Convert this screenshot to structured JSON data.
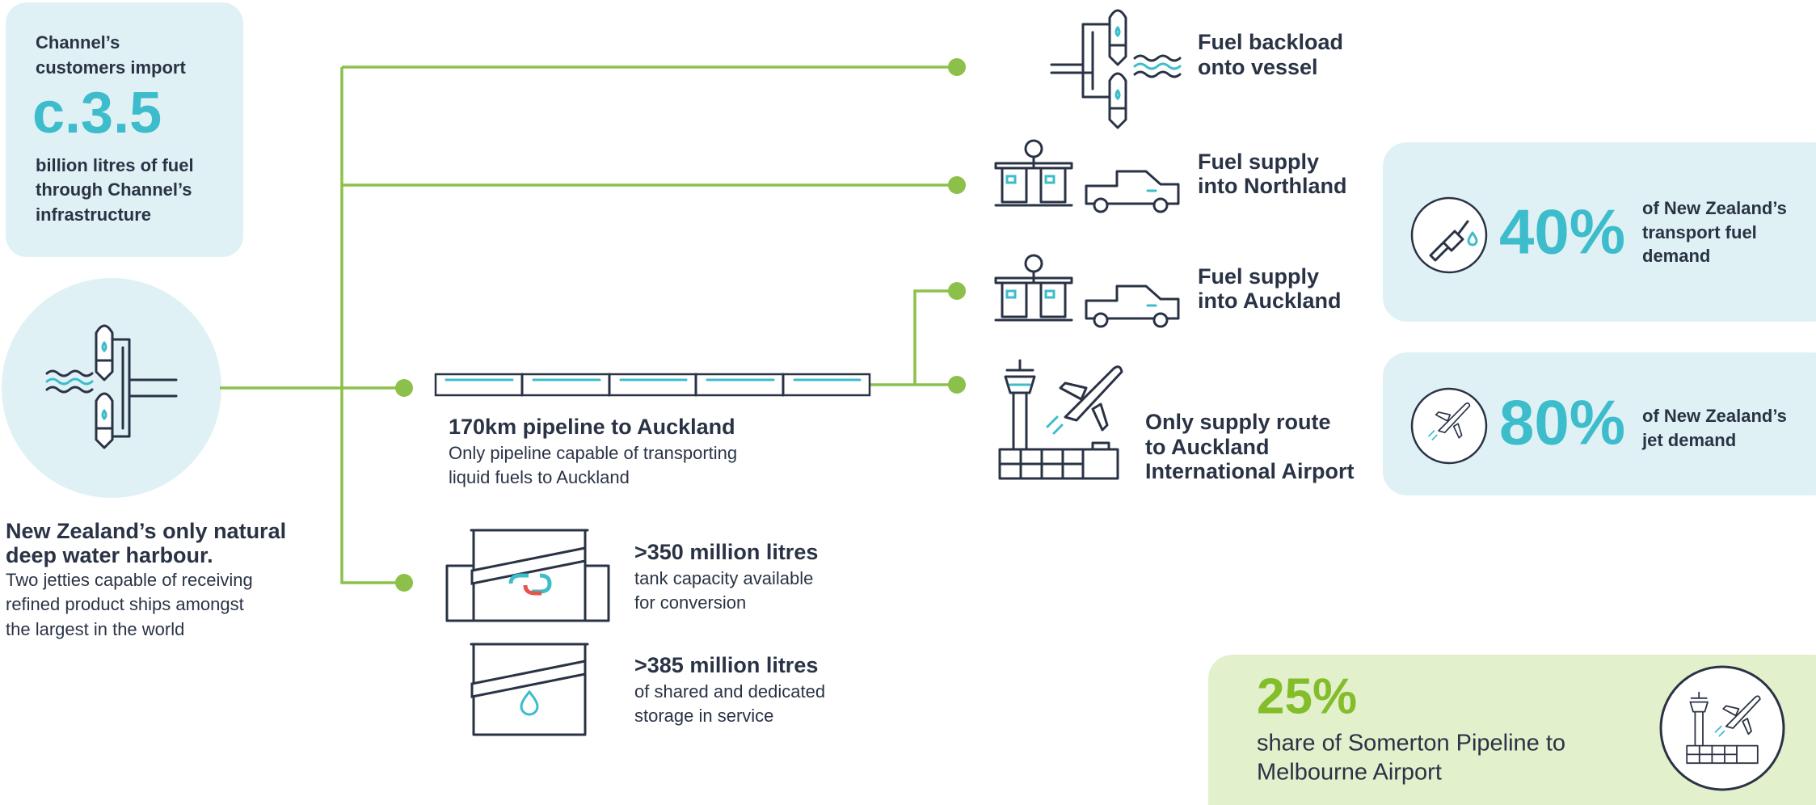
{
  "import_box": {
    "lines_top": [
      "Channel’s",
      "customers import"
    ],
    "figure": "c.3.5",
    "lines_bottom": [
      "billion litres of fuel",
      "through Channel’s",
      "infrastructure"
    ]
  },
  "harbour": {
    "title": [
      "New Zealand’s only natural",
      "deep water harbour."
    ],
    "description": [
      "Two jetties capable of receiving",
      "refined product ships amongst",
      "the largest in the world"
    ]
  },
  "pipeline": {
    "title": "170km pipeline to Auckland",
    "description": [
      "Only pipeline capable of transporting",
      "liquid fuels to Auckland"
    ]
  },
  "storage": [
    {
      "title": ">350 million litres",
      "description": [
        "tank capacity available",
        "for conversion"
      ]
    },
    {
      "title": ">385 million litres",
      "description": [
        "of shared and dedicated",
        "storage in service"
      ]
    }
  ],
  "destinations": [
    {
      "label": [
        "Fuel backload",
        "onto vessel"
      ]
    },
    {
      "label": [
        "Fuel supply",
        "into Northland"
      ]
    },
    {
      "label": [
        "Fuel supply",
        "into Auckland"
      ]
    },
    {
      "label": [
        "Only supply route",
        "to Auckland",
        "International Airport"
      ]
    }
  ],
  "stats": [
    {
      "value": "40%",
      "description": [
        "of New Zealand’s",
        "transport fuel",
        "demand"
      ]
    },
    {
      "value": "80%",
      "description": [
        "of New Zealand’s",
        "jet demand"
      ]
    }
  ],
  "melbourne": {
    "value": "25%",
    "description": [
      "share of Somerton Pipeline to",
      "Melbourne Airport"
    ]
  }
}
